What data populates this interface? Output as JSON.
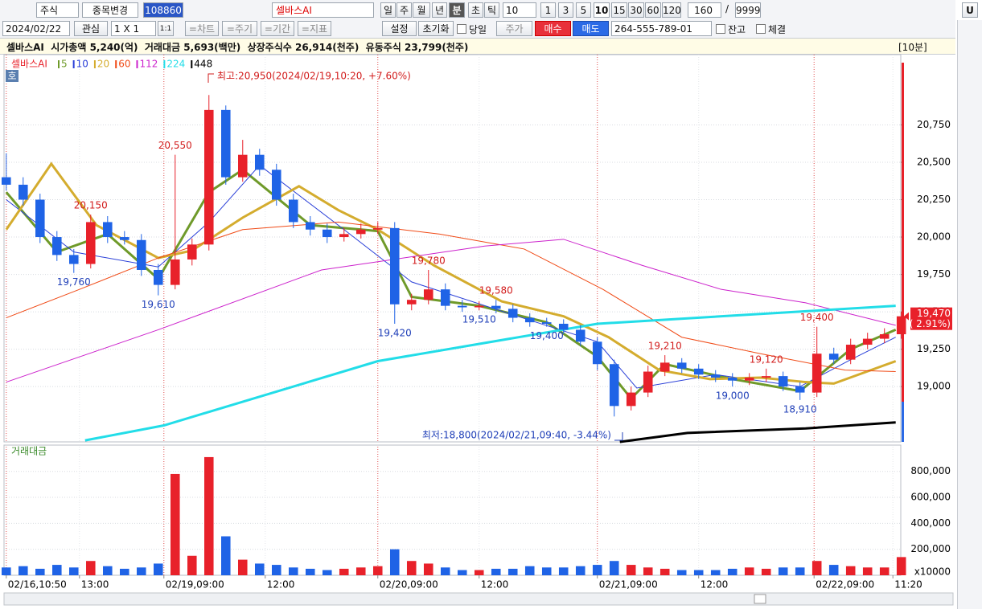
{
  "toolbar": {
    "row1": [
      "주식",
      "종목변경",
      "108860",
      "셀바스AI",
      "일",
      "주",
      "월",
      "년",
      "분",
      "초",
      "틱",
      "10",
      "1",
      "3",
      "5",
      "10",
      "15",
      "30",
      "60",
      "120",
      "160",
      "/",
      "9999",
      "U"
    ],
    "row2": [
      "2024/02/22",
      "관심",
      "1 X 1",
      "1:1",
      "=차트",
      "=주기",
      "=기간",
      "=지표",
      "설정",
      "초기화",
      "당일",
      "주가",
      "매수",
      "매도",
      "264-555-789-01",
      "잔고",
      "체결"
    ]
  },
  "info": {
    "text": "셀바스AI  시가총액 5,240(억)  거래대금 5,693(백만)  상장주식수 26,914(천주)  유동주식 23,799(천주)",
    "period": "[10분]"
  },
  "chart_data": {
    "type": "candlestick",
    "name": "셀바스AI",
    "mode_label": "호",
    "xlim": [
      -0.4,
      158.9
    ],
    "xticks": [
      {
        "value": 0,
        "label": "02/16,10:50"
      },
      {
        "value": 13,
        "label": "13:00"
      },
      {
        "value": 28,
        "label": "02/19,09:00"
      },
      {
        "value": 46,
        "label": "12:00"
      },
      {
        "value": 66,
        "label": "02/20,09:00"
      },
      {
        "value": 84,
        "label": "12:00"
      },
      {
        "value": 105,
        "label": "02/21,09:00"
      },
      {
        "value": 123,
        "label": "12:00"
      },
      {
        "value": 143.5,
        "label": "02/22,09:00"
      },
      {
        "value": 157.5,
        "label": "11:20"
      }
    ],
    "ylim": [
      18630,
      21220
    ],
    "yticks": [
      {
        "value": 19000,
        "label": "19,000"
      },
      {
        "value": 19250,
        "label": "19,250"
      },
      {
        "value": 19500,
        "label": "19,500"
      },
      {
        "value": 19750,
        "label": "19,750"
      },
      {
        "value": 20000,
        "label": "20,000"
      },
      {
        "value": 20250,
        "label": "20,250"
      },
      {
        "value": 20500,
        "label": "20,500"
      },
      {
        "value": 20750,
        "label": "20,750"
      }
    ],
    "grid": true,
    "up_color": "#e8212a",
    "down_color": "#1f63e6",
    "x": [
      0,
      3,
      6,
      9,
      12,
      15,
      18,
      21,
      24,
      27,
      30,
      33,
      36,
      39,
      42,
      45,
      48,
      51,
      54,
      57,
      60,
      63,
      66,
      69,
      72,
      75,
      78,
      81,
      84,
      87,
      90,
      93,
      96,
      99,
      102,
      105,
      108,
      111,
      114,
      117,
      120,
      123,
      126,
      129,
      132,
      135,
      138,
      141,
      144,
      147,
      150,
      153,
      156,
      159
    ],
    "open": [
      20400,
      20350,
      20250,
      20000,
      19880,
      19820,
      20100,
      20000,
      19980,
      19780,
      19680,
      19850,
      19950,
      20850,
      20400,
      20550,
      20450,
      20250,
      20100,
      20050,
      20000,
      20020,
      20050,
      20060,
      19550,
      19580,
      19650,
      19540,
      19530,
      19540,
      19520,
      19460,
      19430,
      19420,
      19380,
      19300,
      19150,
      18870,
      18960,
      19100,
      19160,
      19120,
      19080,
      19060,
      19040,
      19060,
      19070,
      19000,
      18960,
      19220,
      19180,
      19280,
      19320,
      19350
    ],
    "high": [
      20560,
      20400,
      20290,
      20040,
      19920,
      20150,
      20140,
      20040,
      20020,
      19820,
      20550,
      19990,
      20950,
      20880,
      20650,
      20590,
      20490,
      20290,
      20140,
      20090,
      20060,
      20090,
      20100,
      20100,
      19620,
      19780,
      19690,
      19580,
      19570,
      19580,
      19550,
      19490,
      19460,
      19450,
      19410,
      19330,
      19180,
      19000,
      19140,
      19210,
      19190,
      19150,
      19110,
      19090,
      19090,
      19120,
      19100,
      19030,
      19400,
      19260,
      19320,
      19360,
      19390,
      19500
    ],
    "low": [
      20310,
      20210,
      19960,
      19840,
      19760,
      19790,
      19960,
      19950,
      19740,
      19610,
      19650,
      19810,
      19910,
      20350,
      20370,
      20410,
      20210,
      20060,
      20010,
      19960,
      19970,
      19990,
      20020,
      19420,
      19510,
      19550,
      19510,
      19500,
      19510,
      19490,
      19430,
      19400,
      19400,
      19350,
      19270,
      19110,
      18800,
      18840,
      18930,
      19070,
      19090,
      19050,
      19030,
      19000,
      19010,
      19030,
      18970,
      18910,
      18930,
      19150,
      19150,
      19250,
      19290,
      19320
    ],
    "close": [
      20350,
      20250,
      20000,
      19880,
      19820,
      20100,
      20000,
      19980,
      19780,
      19680,
      19850,
      19950,
      20850,
      20400,
      20550,
      20450,
      20250,
      20100,
      20050,
      20000,
      20020,
      20050,
      20060,
      19550,
      19580,
      19650,
      19540,
      19530,
      19540,
      19520,
      19460,
      19430,
      19420,
      19380,
      19300,
      19150,
      18870,
      18960,
      19100,
      19160,
      19120,
      19080,
      19060,
      19040,
      19060,
      19070,
      19000,
      18960,
      19220,
      19180,
      19280,
      19320,
      19350,
      19470
    ],
    "series": [
      {
        "name": "5",
        "color": "#6f9a2a",
        "width": 3,
        "x": [
          0,
          9,
          18,
          27,
          36,
          42,
          54,
          66,
          72,
          84,
          96,
          105,
          111,
          117,
          129,
          141,
          150,
          158
        ],
        "values": [
          20300,
          19900,
          20020,
          19720,
          20300,
          20450,
          20080,
          20040,
          19600,
          19540,
          19430,
          19200,
          18920,
          19150,
          19050,
          18970,
          19250,
          19380
        ]
      },
      {
        "name": "10",
        "color": "#2a3fd8",
        "width": 1,
        "x": [
          0,
          12,
          27,
          36,
          45,
          60,
          72,
          90,
          105,
          112,
          126,
          141,
          150,
          158
        ],
        "values": [
          20250,
          19900,
          19800,
          20100,
          20480,
          20050,
          19700,
          19480,
          19300,
          18990,
          19080,
          19000,
          19180,
          19330
        ]
      },
      {
        "name": "20",
        "color": "#d4ac2e",
        "width": 3,
        "x": [
          0,
          8,
          16,
          27,
          33,
          42,
          52,
          59,
          66,
          76,
          88,
          99,
          107,
          116,
          125,
          134,
          142,
          147,
          158
        ],
        "values": [
          20050,
          20490,
          20080,
          19860,
          19910,
          20130,
          20340,
          20180,
          20050,
          19810,
          19570,
          19470,
          19330,
          19110,
          19050,
          19060,
          19030,
          19020,
          19170
        ]
      },
      {
        "name": "60",
        "color": "#f04a16",
        "width": 1,
        "x": [
          0,
          13,
          27,
          42,
          59,
          77,
          92,
          106,
          120,
          134,
          149,
          158
        ],
        "values": [
          19460,
          19650,
          19860,
          20050,
          20100,
          20020,
          19920,
          19650,
          19330,
          19220,
          19110,
          19100
        ]
      },
      {
        "name": "112",
        "color": "#cc22cc",
        "width": 1,
        "x": [
          0,
          27,
          56,
          85,
          99,
          113,
          127,
          142,
          158
        ],
        "values": [
          19030,
          19380,
          19780,
          19940,
          19985,
          19810,
          19650,
          19560,
          19410
        ]
      },
      {
        "name": "224",
        "color": "#22dde8",
        "width": 3,
        "x": [
          14,
          28,
          66,
          105,
          158
        ],
        "values": [
          18640,
          18740,
          19170,
          19420,
          19540
        ]
      },
      {
        "name": "448",
        "color": "#000000",
        "width": 3,
        "x": [
          109,
          121,
          142,
          158
        ],
        "values": [
          18630,
          18690,
          18720,
          18760
        ]
      }
    ],
    "annotations": [
      {
        "x": 15,
        "value": 20150,
        "label": "20,150"
      },
      {
        "x": 12,
        "value": 19760,
        "label": "19,760"
      },
      {
        "x": 27,
        "value": 19610,
        "label": "19,610"
      },
      {
        "x": 30,
        "value": 20550,
        "label": "20,550"
      },
      {
        "x": 75,
        "value": 19780,
        "label": "19,780"
      },
      {
        "x": 69,
        "value": 19420,
        "label": "19,420"
      },
      {
        "x": 87,
        "value": 19580,
        "label": "19,580"
      },
      {
        "x": 84,
        "value": 19510,
        "label": "19,510"
      },
      {
        "x": 96,
        "value": 19400,
        "label": "19,400"
      },
      {
        "x": 117,
        "value": 19210,
        "label": "19,210"
      },
      {
        "x": 129,
        "value": 19000,
        "label": "19,000"
      },
      {
        "x": 135,
        "value": 19120,
        "label": "19,120"
      },
      {
        "x": 141,
        "value": 18910,
        "label": "18,910"
      },
      {
        "x": 144,
        "value": 19400,
        "label": "19,400"
      }
    ],
    "max_label": "최고:20,950(2024/02/19,10:20, +7.60%)",
    "min_label": "최저:18,800(2024/02/21,09:40, -3.44%)",
    "last_price": {
      "value": 19470,
      "label": "19,470",
      "change": "( 2.91%)"
    },
    "volume": {
      "name": "거래대금",
      "unit_label": "x10000",
      "ylim": [
        0,
        990000
      ],
      "yticks": [
        {
          "value": 200000,
          "label": "200,000"
        },
        {
          "value": 400000,
          "label": "400,000"
        },
        {
          "value": 600000,
          "label": "600,000"
        },
        {
          "value": 800000,
          "label": "800,000"
        }
      ],
      "values": [
        60000,
        70000,
        50000,
        80000,
        60000,
        110000,
        70000,
        50000,
        60000,
        90000,
        780000,
        150000,
        910000,
        300000,
        120000,
        90000,
        80000,
        60000,
        50000,
        40000,
        50000,
        60000,
        70000,
        200000,
        110000,
        90000,
        60000,
        40000,
        40000,
        50000,
        50000,
        70000,
        60000,
        60000,
        70000,
        80000,
        110000,
        80000,
        60000,
        50000,
        40000,
        40000,
        40000,
        50000,
        60000,
        50000,
        60000,
        60000,
        110000,
        80000,
        70000,
        60000,
        60000,
        140000
      ]
    }
  }
}
